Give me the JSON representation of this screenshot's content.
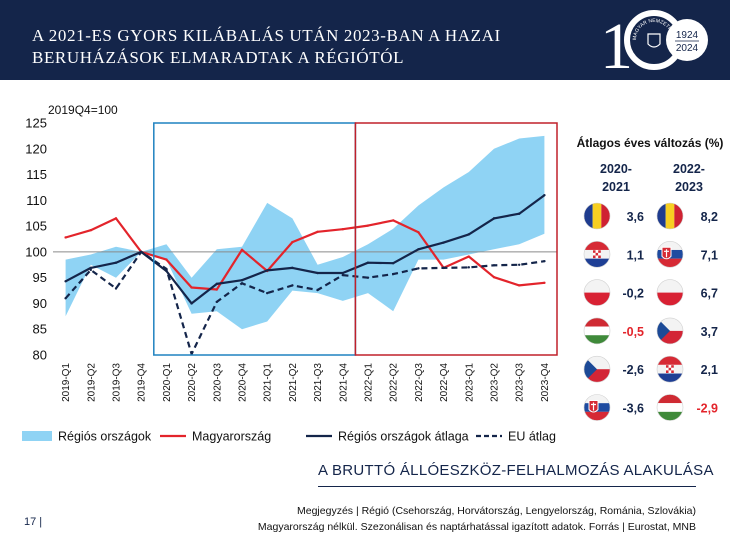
{
  "header": {
    "title_line1": "A 2021-ES GYORS KILÁBALÁS UTÁN 2023-BAN A HAZAI",
    "title_line2": "BERUHÁZÁSOK ELMARADTAK A RÉGIÓTÓL",
    "logo_years": [
      "1924",
      "2024"
    ],
    "logo_text": "MAGYAR NEMZETI BANK",
    "logo_number": "100"
  },
  "chart_data": {
    "type": "line",
    "ylabel": "2019Q4=100",
    "ylim": [
      80,
      125
    ],
    "yticks": [
      80,
      85,
      90,
      95,
      100,
      105,
      110,
      115,
      120,
      125
    ],
    "categories": [
      "2019-Q1",
      "2019-Q2",
      "2019-Q3",
      "2019-Q4",
      "2020-Q1",
      "2020-Q2",
      "2020-Q3",
      "2020-Q4",
      "2021-Q1",
      "2021-Q2",
      "2021-Q3",
      "2021-Q4",
      "2022-Q1",
      "2022-Q2",
      "2022-Q3",
      "2022-Q4",
      "2023-Q1",
      "2023-Q2",
      "2023-Q3",
      "2023-Q4"
    ],
    "band": {
      "name": "Régiós országok",
      "color": "#8fd3f4",
      "upper": [
        98.5,
        99.5,
        101,
        100,
        101.5,
        95,
        100.5,
        101,
        109.5,
        106.5,
        97.5,
        99,
        101.5,
        104.5,
        109,
        112.5,
        115.5,
        120,
        122,
        122.5
      ],
      "lower": [
        87.5,
        97.5,
        95,
        100,
        98.5,
        88,
        88.5,
        85,
        86.5,
        92.5,
        92,
        90.5,
        92,
        88.5,
        98.5,
        98.5,
        99.5,
        100.5,
        101.5,
        103.5
      ]
    },
    "series": [
      {
        "name": "Magyarország",
        "color": "#e3242b",
        "dash": false,
        "values": [
          102.8,
          104.2,
          106.5,
          100,
          98.5,
          93.1,
          92.7,
          100.4,
          96.3,
          101.9,
          103.9,
          104.4,
          105.1,
          106.1,
          103.8,
          96.9,
          99.1,
          95.1,
          93.5,
          94.0
        ]
      },
      {
        "name": "Régiós országok átlaga",
        "color": "#14254a",
        "dash": false,
        "values": [
          94.3,
          96.9,
          97.9,
          100,
          96.3,
          90.0,
          93.8,
          94.5,
          96.4,
          96.9,
          95.9,
          95.9,
          97.9,
          97.8,
          100.5,
          101.8,
          103.4,
          106.5,
          107.4,
          111.0
        ]
      },
      {
        "name": "EU átlag",
        "color": "#14254a",
        "dash": true,
        "values": [
          91.0,
          96.5,
          92.9,
          100,
          96.7,
          80.2,
          90.3,
          93.9,
          92.0,
          93.5,
          92.6,
          95.5,
          95.0,
          95.7,
          96.8,
          96.9,
          97.0,
          97.4,
          97.5,
          98.2
        ]
      }
    ],
    "highlight_boxes": [
      {
        "from": "2020-Q1",
        "to": "2021-Q4",
        "color": "#1f82c0"
      },
      {
        "from": "2022-Q1",
        "to": "2023-Q4",
        "color": "#c0202a"
      }
    ]
  },
  "legend": [
    {
      "label": "Régiós országok",
      "kind": "band",
      "color": "#8fd3f4"
    },
    {
      "label": "Magyarország",
      "kind": "line",
      "color": "#e3242b"
    },
    {
      "label": "Régiós országok átlaga",
      "kind": "line",
      "color": "#14254a"
    },
    {
      "label": "EU átlag",
      "kind": "dash",
      "color": "#14254a"
    }
  ],
  "table": {
    "title": "Átlagos éves változás (%)",
    "col1_header_a": "2020-",
    "col1_header_b": "2021",
    "col2_header_a": "2022-",
    "col2_header_b": "2023",
    "rows": [
      {
        "flag1": "romania-flag",
        "val1": "3,6",
        "neg1": false,
        "flag2": "romania-flag",
        "val2": "8,2",
        "neg2": false
      },
      {
        "flag1": "croatia-flag",
        "val1": "1,1",
        "neg1": false,
        "flag2": "slovakia-flag",
        "val2": "7,1",
        "neg2": false
      },
      {
        "flag1": "poland-flag",
        "val1": "-0,2",
        "neg1": false,
        "flag2": "poland-flag",
        "val2": "6,7",
        "neg2": false
      },
      {
        "flag1": "hungary-flag",
        "val1": "-0,5",
        "neg1": true,
        "flag2": "czechia-flag",
        "val2": "3,7",
        "neg2": false
      },
      {
        "flag1": "czechia-flag",
        "val1": "-2,6",
        "neg1": false,
        "flag2": "croatia-flag",
        "val2": "2,1",
        "neg2": false
      },
      {
        "flag1": "slovakia-flag",
        "val1": "-3,6",
        "neg1": false,
        "flag2": "hungary-flag",
        "val2": "-2,9",
        "neg2": true
      }
    ]
  },
  "footer": {
    "subtitle": "A BRUTTÓ ÁLLÓESZKÖZ-FELHALMOZÁS ALAKULÁSA",
    "note_line1": "Megjegyzés | Régió (Csehország, Horvátország, Lengyelország, Románia, Szlovákia)",
    "note_line2": "Magyarország nélkül. Szezonálisan és naptárhatással igazított adatok. Forrás | Eurostat, MNB",
    "page_number": "17 |"
  },
  "colors": {
    "navy": "#14254a",
    "red": "#e3242b",
    "band": "#8fd3f4"
  }
}
